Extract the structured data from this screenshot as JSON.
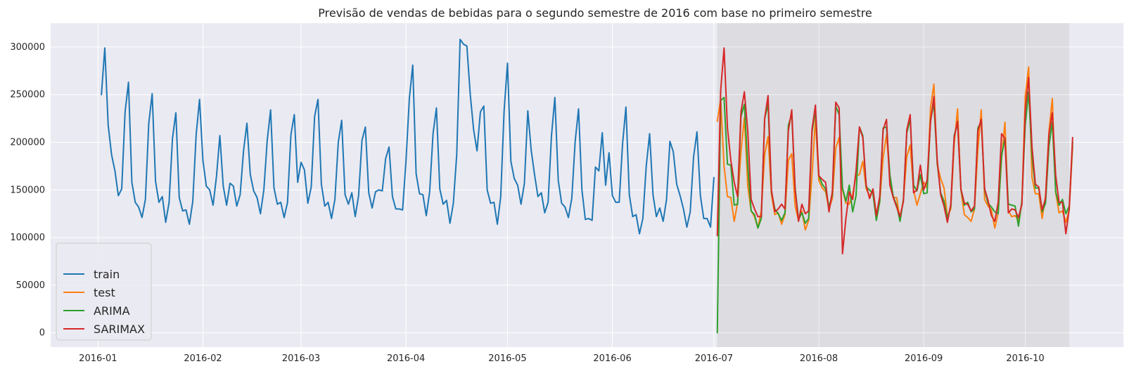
{
  "chart_data": {
    "type": "line",
    "title": "Previsão de vendas de bebidas para o segundo semestre de 2016 com base no primeiro semestre",
    "xlabel": "",
    "ylabel": "",
    "xlim": [
      "2015-12-18",
      "2016-10-30"
    ],
    "ylim": [
      -15000,
      325000
    ],
    "x_ticks": [
      "2016-01",
      "2016-02",
      "2016-03",
      "2016-04",
      "2016-05",
      "2016-06",
      "2016-07",
      "2016-08",
      "2016-09",
      "2016-10"
    ],
    "y_ticks": [
      0,
      50000,
      100000,
      150000,
      200000,
      250000,
      300000
    ],
    "y_tick_labels": [
      "0",
      "50000",
      "100000",
      "150000",
      "200000",
      "250000",
      "300000"
    ],
    "grid": true,
    "legend_position": "lower-left",
    "shaded_region": {
      "start": "2016-07-02",
      "end": "2016-10-14",
      "color": "#d9d9de"
    },
    "colors": {
      "background": "#eaeaf2",
      "grid": "#ffffff",
      "text": "#262626"
    },
    "series": [
      {
        "name": "train",
        "color": "#1f77b4",
        "start_date": "2016-01-02",
        "values": [
          250000,
          299000,
          218000,
          187000,
          170000,
          144000,
          151000,
          232000,
          263000,
          158000,
          137000,
          132000,
          121000,
          140000,
          220000,
          251000,
          159000,
          137000,
          143000,
          116000,
          137000,
          204000,
          231000,
          142000,
          128000,
          129000,
          114000,
          138000,
          208000,
          245000,
          181000,
          154000,
          150000,
          134000,
          164000,
          207000,
          154000,
          134000,
          157000,
          154000,
          133000,
          145000,
          191000,
          220000,
          166000,
          149000,
          142000,
          125000,
          150000,
          202000,
          234000,
          152000,
          135000,
          137000,
          121000,
          137000,
          208000,
          229000,
          158000,
          179000,
          171000,
          136000,
          153000,
          227000,
          245000,
          156000,
          133000,
          137000,
          120000,
          140000,
          200000,
          223000,
          145000,
          135000,
          147000,
          122000,
          144000,
          202000,
          216000,
          147000,
          131000,
          148000,
          150000,
          149000,
          183000,
          195000,
          143000,
          130000,
          130000,
          129000,
          180000,
          246000,
          281000,
          167000,
          146000,
          145000,
          123000,
          148000,
          209000,
          236000,
          151000,
          135000,
          139000,
          115000,
          136000,
          187000,
          308000,
          303000,
          301000,
          250000,
          213000,
          191000,
          232000,
          238000,
          150000,
          136000,
          137000,
          114000,
          143000,
          233000,
          283000,
          180000,
          162000,
          155000,
          135000,
          157000,
          233000,
          192000,
          166000,
          143000,
          147000,
          126000,
          137000,
          207000,
          247000,
          160000,
          136000,
          132000,
          121000,
          141000,
          201000,
          235000,
          150000,
          119000,
          120000,
          118000,
          174000,
          170000,
          210000,
          155000,
          189000,
          144000,
          137000,
          137000,
          198000,
          237000,
          145000,
          122000,
          124000,
          104000,
          120000,
          175000,
          209000,
          145000,
          122000,
          131000,
          117000,
          140000,
          201000,
          190000,
          156000,
          144000,
          130000,
          111000,
          127000,
          185000,
          211000,
          144000,
          120000,
          120000,
          111000,
          163000
        ]
      },
      {
        "name": "test",
        "color": "#ff7f0e",
        "start_date": "2016-07-02",
        "values": [
          222000,
          245000,
          175000,
          143000,
          142000,
          117000,
          137000,
          190000,
          226000,
          154000,
          128000,
          122000,
          110000,
          128000,
          187000,
          206000,
          145000,
          124000,
          126000,
          114000,
          124000,
          181000,
          188000,
          133000,
          118000,
          128000,
          108000,
          118000,
          166000,
          225000,
          160000,
          152000,
          148000,
          130000,
          141000,
          194000,
          205000,
          150000,
          136000,
          135000,
          145000,
          165000,
          166000,
          180000,
          151000,
          144000,
          149000,
          125000,
          137000,
          184000,
          208000,
          163000,
          142000,
          142000,
          119000,
          140000,
          185000,
          197000,
          150000,
          134000,
          146000,
          158000,
          152000,
          236000,
          261000,
          176000,
          162000,
          152000,
          122000,
          130000,
          198000,
          235000,
          150000,
          124000,
          121000,
          117000,
          130000,
          192000,
          234000,
          140000,
          133000,
          129000,
          110000,
          126000,
          183000,
          221000,
          128000,
          122000,
          123000,
          118000,
          135000,
          248000,
          279000,
          163000,
          146000,
          146000,
          120000,
          144000,
          211000,
          246000,
          147000,
          126000,
          128000,
          116000,
          129000,
          196000
        ]
      },
      {
        "name": "ARIMA",
        "color": "#2ca02c",
        "start_date": "2016-07-02",
        "values": [
          0,
          244000,
          247000,
          177000,
          176000,
          134000,
          135000,
          227000,
          240000,
          175000,
          128000,
          124000,
          110000,
          120000,
          225000,
          240000,
          148000,
          130000,
          125000,
          118000,
          126000,
          218000,
          229000,
          152000,
          119000,
          126000,
          115000,
          120000,
          211000,
          234000,
          165000,
          156000,
          151000,
          132000,
          145000,
          238000,
          229000,
          152000,
          138000,
          155000,
          127000,
          144000,
          216000,
          207000,
          153000,
          150000,
          146000,
          118000,
          138000,
          215000,
          216000,
          166000,
          143000,
          134000,
          117000,
          140000,
          210000,
          224000,
          155000,
          149000,
          166000,
          146000,
          147000,
          223000,
          241000,
          178000,
          147000,
          138000,
          120000,
          133000,
          207000,
          220000,
          150000,
          134000,
          137000,
          127000,
          130000,
          215000,
          222000,
          150000,
          136000,
          132000,
          127000,
          125000,
          186000,
          204000,
          135000,
          134000,
          133000,
          112000,
          138000,
          218000,
          253000,
          185000,
          152000,
          152000,
          127000,
          136000,
          196000,
          221000,
          148000,
          134000,
          140000,
          125000,
          133000,
          200000
        ]
      },
      {
        "name": "SARIMAX",
        "color": "#d62728",
        "start_date": "2016-07-02",
        "values": [
          102000,
          254000,
          299000,
          215000,
          181000,
          158000,
          143000,
          232000,
          253000,
          212000,
          140000,
          130000,
          122000,
          122000,
          225000,
          249000,
          150000,
          127000,
          130000,
          135000,
          130000,
          212000,
          234000,
          150000,
          117000,
          135000,
          125000,
          128000,
          214000,
          239000,
          165000,
          161000,
          158000,
          127000,
          148000,
          242000,
          236000,
          83000,
          120000,
          148000,
          140000,
          170000,
          216000,
          205000,
          155000,
          141000,
          151000,
          123000,
          143000,
          213000,
          224000,
          155000,
          142000,
          132000,
          122000,
          138000,
          213000,
          229000,
          147000,
          150000,
          176000,
          150000,
          160000,
          221000,
          248000,
          181000,
          145000,
          133000,
          116000,
          135000,
          205000,
          222000,
          151000,
          136000,
          135000,
          128000,
          133000,
          212000,
          224000,
          151000,
          139000,
          123000,
          117000,
          137000,
          209000,
          204000,
          126000,
          130000,
          129000,
          121000,
          135000,
          233000,
          268000,
          195000,
          156000,
          153000,
          129000,
          141000,
          208000,
          231000,
          165000,
          137000,
          137000,
          104000,
          130000,
          205000
        ]
      }
    ]
  }
}
